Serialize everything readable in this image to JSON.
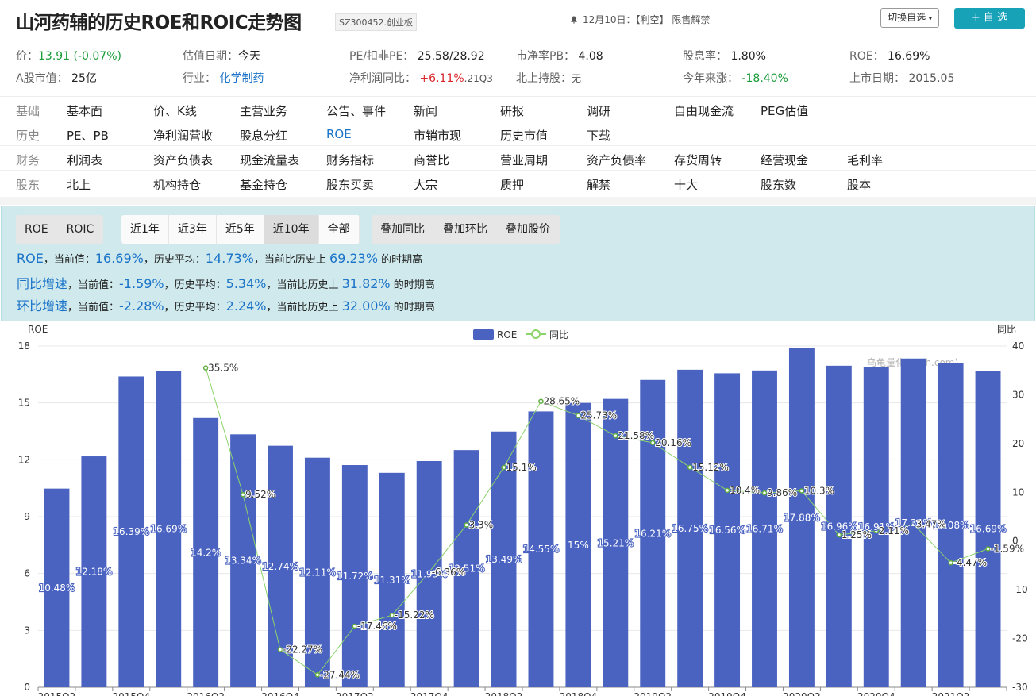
{
  "header": {
    "title": "山河药辅的历史ROE和ROIC走势图",
    "code": "SZ300452.创业板",
    "notice": "12月10日：【利空】 限售解禁",
    "switch_label": "切换自选",
    "add_label": "+ 自 选"
  },
  "stats": {
    "price_label": "价：",
    "price_value": "13.91 (-0.07%)",
    "valdate_label": "估值日期：",
    "valdate_value": "今天",
    "pe_label": "PE/扣非PE：",
    "pe_value": "25.58/28.92",
    "pb_label": "市净率PB：",
    "pb_value": "4.08",
    "dividend_label": "股息率：",
    "dividend_value": "1.80%",
    "roe_label": "ROE：",
    "roe_value": "16.69%",
    "mktcap_label": "A股市值：",
    "mktcap_value": "25亿",
    "industry_label": "行业：",
    "industry_value": "化学制药",
    "profit_label": "净利润同比：",
    "profit_value": "+6.11%",
    "profit_period": ".21Q3",
    "north_label": "北上持股：",
    "north_value": "无",
    "ytd_label": "今年来涨：",
    "ytd_value": "-18.40%",
    "ipo_label": "上市日期：",
    "ipo_value": "2015.05"
  },
  "nav": [
    {
      "cat": "基础",
      "items": [
        "基本面",
        "价、K线",
        "主营业务",
        "公告、事件",
        "新闻",
        "研报",
        "调研",
        "自由现金流",
        "PEG估值"
      ]
    },
    {
      "cat": "历史",
      "items": [
        "PE、PB",
        "净利润营收",
        "股息分红",
        "ROE",
        "市销市现",
        "历史市值",
        "下载"
      ]
    },
    {
      "cat": "财务",
      "items": [
        "利润表",
        "资产负债表",
        "现金流量表",
        "财务指标",
        "商誉比",
        "营业周期",
        "资产负债率",
        "存货周转",
        "经营现金",
        "毛利率"
      ]
    },
    {
      "cat": "股东",
      "items": [
        "北上",
        "机构持仓",
        "基金持仓",
        "股东买卖",
        "大宗",
        "质押",
        "解禁",
        "十大",
        "股东数",
        "股本"
      ]
    }
  ],
  "nav_active": "ROE",
  "panel": {
    "metric_tabs": [
      "ROE",
      "ROIC"
    ],
    "range_tabs": [
      "近1年",
      "近3年",
      "近5年",
      "近10年",
      "全部"
    ],
    "overlay_tabs": [
      "叠加同比",
      "叠加环比",
      "叠加股价"
    ],
    "selected_metric": "ROE",
    "selected_range": "近10年",
    "rows": [
      {
        "label": "ROE",
        "t1": "，当前值：",
        "cur": "16.69%",
        "t2": "，历史平均：",
        "avg": "14.73%",
        "t3": "，当前比历史上 ",
        "pct": "69.23%",
        "t4": " 的时期高"
      },
      {
        "label": "同比增速",
        "t1": "，当前值：",
        "cur": "-1.59%",
        "t2": "，历史平均：",
        "avg": "5.34%",
        "t3": "，当前比历史上 ",
        "pct": "31.82%",
        "t4": " 的时期高"
      },
      {
        "label": "环比增速",
        "t1": "，当前值：",
        "cur": "-2.28%",
        "t2": "，历史平均：",
        "avg": "2.24%",
        "t3": "，当前比历史上 ",
        "pct": "32.00%",
        "t4": " 的时期高"
      }
    ]
  },
  "chart_data": {
    "type": "bar",
    "ylabel_left": "ROE",
    "ylabel_right": "同比",
    "ylim_left": [
      0,
      18
    ],
    "yticks_left": [
      0,
      3,
      6,
      9,
      12,
      15,
      18
    ],
    "ylim_right": [
      -30,
      40
    ],
    "yticks_right": [
      -30,
      -20,
      -10,
      0,
      10,
      20,
      30,
      40
    ],
    "watermark": "乌龟量化(wglh.com)",
    "legend": [
      "ROE",
      "同比"
    ],
    "x_tick_labels": [
      "2015Q2",
      "2015Q4",
      "2016Q2",
      "2016Q4",
      "2017Q2",
      "2017Q4",
      "2018Q2",
      "2018Q4",
      "2019Q2",
      "2019Q4",
      "2020Q2",
      "2020Q4",
      "2021Q2"
    ],
    "bar_color": "#4a63c1",
    "line_color": "#8bd36b",
    "series": [
      {
        "name": "ROE",
        "type": "bar",
        "values": [
          10.48,
          12.18,
          16.39,
          16.69,
          14.2,
          13.34,
          12.74,
          12.11,
          11.72,
          11.31,
          11.93,
          12.51,
          13.49,
          14.55,
          15,
          15.21,
          16.21,
          16.75,
          16.56,
          16.71,
          17.88,
          16.96,
          16.91,
          17.34,
          17.08,
          16.69
        ]
      },
      {
        "name": "同比",
        "type": "line",
        "values": [
          null,
          null,
          null,
          null,
          35.5,
          9.52,
          -22.27,
          -27.44,
          -17.46,
          -15.22,
          -6.36,
          3.3,
          15.1,
          28.65,
          25.73,
          21.58,
          20.16,
          15.12,
          10.4,
          9.86,
          10.3,
          1.25,
          2.11,
          3.47,
          -4.47,
          -1.59
        ]
      }
    ],
    "bar_labels": [
      "10.48%",
      "12.18%",
      "16.39%",
      "16.69%",
      "14.2%",
      "13.34%",
      "12.74%",
      "12.11%",
      "11.72%",
      "11.31%",
      "11.93%",
      "12.51%",
      "13.49%",
      "14.55%",
      "15%",
      "15.21%",
      "16.21%",
      "16.75%",
      "16.56%",
      "16.71%",
      "17.88%",
      "16.96%",
      "16.91%",
      "17.34%",
      "17.08%",
      "16.69%"
    ],
    "line_labels": [
      null,
      null,
      null,
      null,
      "35.5%",
      "9.52%",
      "-22.27%",
      "-27.44%",
      "-17.46%",
      "-15.22%",
      "-6.36%",
      "3.3%",
      "15.1%",
      "28.65%",
      "25.73%",
      "21.58%",
      "20.16%",
      "15.12%",
      "10.4%",
      "9.86%",
      "10.3%",
      "1.25%",
      "2.11%",
      "3.47%",
      "-4.47%",
      "-1.59%"
    ]
  }
}
